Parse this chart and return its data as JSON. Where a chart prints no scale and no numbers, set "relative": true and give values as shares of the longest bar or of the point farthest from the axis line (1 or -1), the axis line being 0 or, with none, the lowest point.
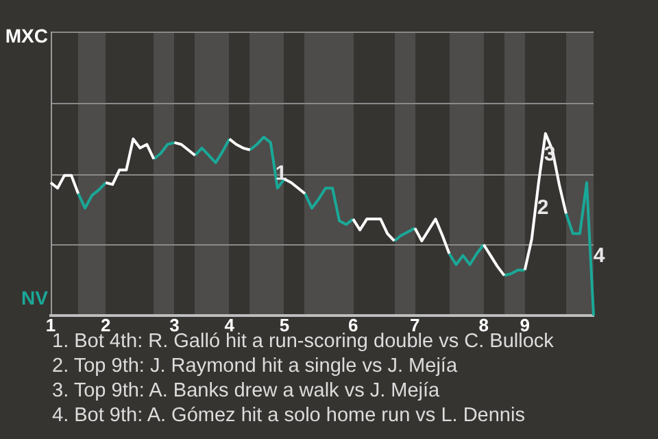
{
  "chart_data": {
    "type": "line",
    "relative": true,
    "categories": [
      "1",
      null,
      null,
      null,
      null,
      null,
      null,
      null,
      "2",
      null,
      null,
      null,
      null,
      null,
      null,
      null,
      null,
      null,
      "3",
      null,
      null,
      null,
      null,
      null,
      null,
      null,
      "4",
      null,
      null,
      null,
      null,
      null,
      null,
      null,
      "5",
      null,
      null,
      null,
      null,
      null,
      null,
      null,
      null,
      null,
      "6",
      null,
      null,
      null,
      null,
      null,
      null,
      null,
      null,
      "7",
      null,
      null,
      null,
      null,
      null,
      null,
      null,
      null,
      null,
      "8",
      null,
      null,
      null,
      null,
      null,
      "9",
      null,
      null,
      null,
      null,
      null,
      null,
      null,
      null,
      null,
      null
    ],
    "legend": "left",
    "marker": "none",
    "line_style": "solid",
    "ref_lines": [
      {
        "axis": "y",
        "value": 0.39,
        "color": "#8a8a8a"
      },
      {
        "axis": "y",
        "value": 0.78,
        "color": "#8a8a8a"
      },
      {
        "axis": "y",
        "value": 1.17,
        "color": "#8a8a8a"
      },
      {
        "axis": "y",
        "value": 1.56,
        "color": "#8a8a8a"
      }
    ],
    "series": [
      {
        "name": "MXC",
        "color": "#ffffff",
        "values": [
          0.73,
          0.7,
          0.77,
          0.77,
          0.67,
          null,
          null,
          null,
          0.73,
          0.72,
          0.8,
          0.8,
          0.97,
          0.92,
          0.94,
          0.86,
          null,
          null,
          0.95,
          0.94,
          0.91,
          0.88,
          null,
          null,
          null,
          null,
          0.97,
          0.94,
          0.92,
          0.91,
          null,
          null,
          null,
          null,
          0.75,
          0.73,
          0.7,
          0.67,
          null,
          null,
          null,
          null,
          null,
          null,
          0.53,
          0.47,
          0.53,
          0.53,
          0.53,
          0.45,
          0.41,
          null,
          null,
          0.48,
          0.41,
          0.47,
          0.53,
          0.44,
          0.34,
          null,
          null,
          null,
          null,
          0.39,
          0.33,
          0.27,
          0.22,
          null,
          null,
          0.25,
          0.42,
          0.73,
          1,
          0.91,
          0.72,
          0.56,
          null,
          null,
          null,
          null
        ]
      },
      {
        "name": "NV",
        "color": "#1aa898",
        "values": [
          null,
          null,
          null,
          null,
          0.67,
          0.59,
          0.66,
          0.69,
          0.73,
          null,
          null,
          null,
          null,
          null,
          null,
          0.86,
          0.89,
          0.94,
          0.95,
          null,
          null,
          0.88,
          0.92,
          0.88,
          0.84,
          0.9,
          0.97,
          null,
          null,
          0.91,
          0.94,
          0.98,
          0.95,
          0.7,
          0.75,
          null,
          null,
          0.67,
          0.59,
          0.64,
          0.7,
          0.7,
          0.52,
          0.5,
          0.53,
          null,
          null,
          null,
          null,
          null,
          0.41,
          0.44,
          0.46,
          0.48,
          null,
          null,
          null,
          null,
          0.34,
          0.28,
          0.33,
          0.28,
          0.34,
          0.39,
          null,
          null,
          0.22,
          0.23,
          0.25,
          0.25,
          null,
          null,
          null,
          null,
          null,
          0.56,
          0.45,
          0.45,
          0.73,
          0
        ]
      }
    ],
    "annotations": [
      "1",
      "2",
      "3",
      "4",
      "1. Bot 4th: R. Galló hit a run-scoring double vs C. Bullock",
      "2. Top 9th: J. Raymond hit a single vs J. Mejía",
      "3. Top 9th: A. Banks drew a walk vs J. Mejía",
      "4. Bot 9th: A. Gómez hit a solo home run vs L. Dennis"
    ]
  }
}
